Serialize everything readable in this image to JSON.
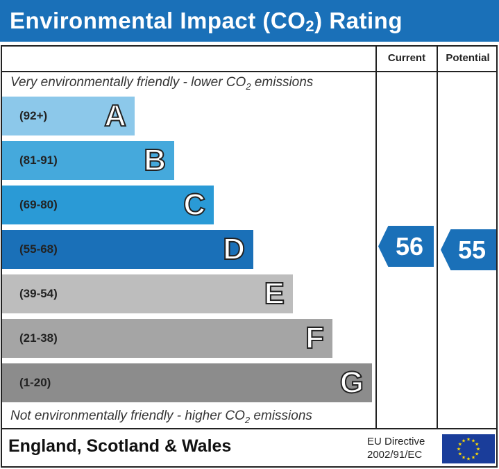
{
  "title": {
    "main": "Environmental Impact (CO",
    "sub": "2",
    "end": ") Rating"
  },
  "columns": {
    "current": "Current",
    "potential": "Potential"
  },
  "notes": {
    "top_a": "Very environmentally friendly - lower CO",
    "top_sub": "2",
    "top_b": " emissions",
    "bottom_a": "Not environmentally friendly - higher CO",
    "bottom_sub": "2",
    "bottom_b": " emissions"
  },
  "chart_data": {
    "type": "bar",
    "title": "Environmental Impact (CO2) Rating",
    "bands": [
      {
        "letter": "A",
        "range": "(92+)",
        "color": "#8cc8ea"
      },
      {
        "letter": "B",
        "range": "(81-91)",
        "color": "#45a9dc"
      },
      {
        "letter": "C",
        "range": "(69-80)",
        "color": "#2a9ad6"
      },
      {
        "letter": "D",
        "range": "(55-68)",
        "color": "#1a70b8"
      },
      {
        "letter": "E",
        "range": "(39-54)",
        "color": "#bdbdbd"
      },
      {
        "letter": "F",
        "range": "(21-38)",
        "color": "#a5a5a5"
      },
      {
        "letter": "G",
        "range": "(1-20)",
        "color": "#8c8c8c"
      }
    ],
    "current": 56,
    "potential": 55,
    "current_band": "D",
    "potential_band": "D"
  },
  "footer": {
    "region": "England, Scotland & Wales",
    "eu_line1": "EU Directive",
    "eu_line2": "2002/91/EC"
  },
  "colors": {
    "accent": "#1a70b8"
  }
}
